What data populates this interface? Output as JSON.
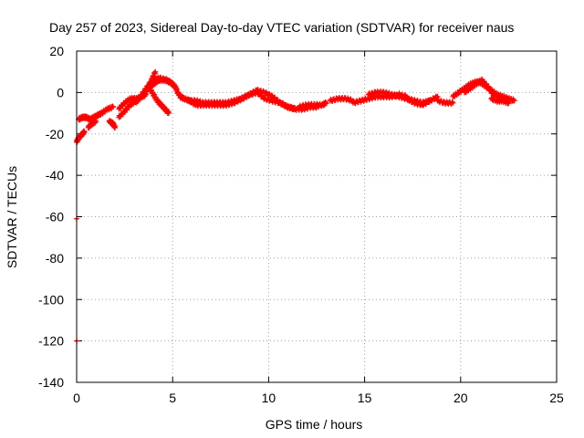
{
  "chart_data": {
    "type": "scatter",
    "title": "Day 257 of 2023, Sidereal Day-to-day VTEC variation (SDTVAR) for receiver naus",
    "xlabel": "GPS time / hours",
    "ylabel": "SDTVAR / TECUs",
    "xlim": [
      0,
      25
    ],
    "ylim": [
      -140,
      20
    ],
    "xticks": [
      0,
      5,
      10,
      15,
      20,
      25
    ],
    "yticks": [
      -140,
      -120,
      -100,
      -80,
      -60,
      -40,
      -20,
      0,
      20
    ],
    "grid": true,
    "marker": "+",
    "colors": {
      "series": "#ff0000",
      "grid": "#a0a0a0",
      "frame": "#000000"
    },
    "series": [
      {
        "name": "SDTVAR",
        "segments": [
          {
            "x": [
              0.0,
              0.1,
              0.2,
              0.3,
              0.4
            ],
            "y": [
              -24,
              -22,
              -21,
              -20,
              -19
            ]
          },
          {
            "x": [
              0.1,
              0.3,
              0.5,
              0.7,
              0.9,
              1.1,
              1.3,
              1.6,
              1.9
            ],
            "y": [
              -13,
              -12,
              -12,
              -13,
              -12,
              -11,
              -10,
              -8,
              -7
            ]
          },
          {
            "x": [
              0.6,
              0.8,
              1.0
            ],
            "y": [
              -17,
              -15,
              -14
            ]
          },
          {
            "x": [
              1.7,
              1.9,
              2.0
            ],
            "y": [
              -14,
              -15,
              -17
            ]
          },
          {
            "x": [
              2.2,
              2.5,
              2.8,
              3.1,
              3.4,
              3.6
            ],
            "y": [
              -8,
              -5,
              -3,
              -3,
              -2,
              -1
            ]
          },
          {
            "x": [
              2.2,
              2.5,
              2.8,
              3.1,
              3.4,
              3.7,
              3.9,
              4.1
            ],
            "y": [
              -12,
              -9,
              -6,
              -4,
              -2,
              2,
              6,
              10
            ]
          },
          {
            "x": [
              3.1,
              3.4,
              3.7,
              4.0,
              4.3,
              4.7,
              5.0,
              5.2
            ],
            "y": [
              -5,
              -1,
              3,
              6,
              7,
              6,
              4,
              2
            ]
          },
          {
            "x": [
              3.9,
              4.1,
              4.3,
              4.6,
              4.9,
              5.1
            ],
            "y": [
              3,
              5,
              6,
              6,
              5,
              3
            ]
          },
          {
            "x": [
              3.8,
              4.0,
              4.2,
              4.4,
              4.6,
              4.8
            ],
            "y": [
              2,
              -1,
              -4,
              -6,
              -8,
              -10
            ]
          },
          {
            "x": [
              5.2,
              5.4,
              5.6,
              5.9,
              6.2
            ],
            "y": [
              1,
              -2,
              -3,
              -4,
              -6
            ]
          },
          {
            "x": [
              5.8,
              6.2,
              6.6,
              7.0,
              7.4,
              7.8,
              8.2,
              8.6,
              9.0,
              9.4,
              9.8,
              10.2,
              10.6,
              11.0,
              11.4
            ],
            "y": [
              -4,
              -4,
              -5,
              -5,
              -5,
              -5,
              -4,
              -3,
              -1,
              0,
              -3,
              -4,
              -5,
              -7,
              -8
            ]
          },
          {
            "x": [
              6.2,
              6.6,
              7.0,
              7.4,
              7.8,
              8.2,
              8.6,
              9.0,
              9.4
            ],
            "y": [
              -6,
              -6,
              -6,
              -6,
              -6,
              -5,
              -3,
              -1,
              1
            ]
          },
          {
            "x": [
              9.4,
              9.8,
              10.2,
              10.6,
              11.0,
              11.4,
              11.8,
              12.2,
              12.6
            ],
            "y": [
              1,
              0,
              -2,
              -5,
              -7,
              -8,
              -8,
              -7,
              -7
            ]
          },
          {
            "x": [
              11.6,
              12.0,
              12.4,
              12.8,
              13.0
            ],
            "y": [
              -7,
              -6,
              -6,
              -6,
              -5
            ]
          },
          {
            "x": [
              13.2,
              13.6,
              14.0,
              14.4
            ],
            "y": [
              -4,
              -3,
              -3,
              -4
            ]
          },
          {
            "x": [
              14.4,
              14.8,
              15.2,
              15.6,
              16.0,
              16.4,
              16.8,
              17.2
            ],
            "y": [
              -5,
              -4,
              -3,
              -2,
              -2,
              -2,
              -1,
              -2
            ]
          },
          {
            "x": [
              15.2,
              15.6,
              16.0,
              16.4,
              16.8,
              17.2,
              17.6,
              18.0,
              18.4
            ],
            "y": [
              -1,
              0,
              0,
              -1,
              -2,
              -3,
              -4,
              -5,
              -4
            ]
          },
          {
            "x": [
              17.2,
              17.6,
              18.0,
              18.4,
              18.8
            ],
            "y": [
              -3,
              -5,
              -6,
              -4,
              -2
            ]
          },
          {
            "x": [
              18.8,
              19.2,
              19.6
            ],
            "y": [
              -4,
              -5,
              -5
            ]
          },
          {
            "x": [
              19.6,
              19.9,
              20.2,
              20.5,
              20.8,
              21.0,
              21.3,
              21.6,
              21.9,
              22.2,
              22.5,
              22.8
            ],
            "y": [
              -2,
              0,
              2,
              4,
              5,
              5,
              3,
              1,
              -1,
              -2,
              -3,
              -4
            ]
          },
          {
            "x": [
              20.2,
              20.5,
              20.8,
              21.1,
              21.4,
              21.7,
              22.0
            ],
            "y": [
              0,
              2,
              4,
              6,
              3,
              -1,
              -2
            ]
          },
          {
            "x": [
              21.6,
              21.9,
              22.2,
              22.5
            ],
            "y": [
              -3,
              -4,
              -4,
              -5
            ]
          },
          {
            "x": [
              0.0
            ],
            "y": [
              -61
            ]
          },
          {
            "x": [
              0.0
            ],
            "y": [
              -120
            ]
          }
        ]
      }
    ]
  }
}
